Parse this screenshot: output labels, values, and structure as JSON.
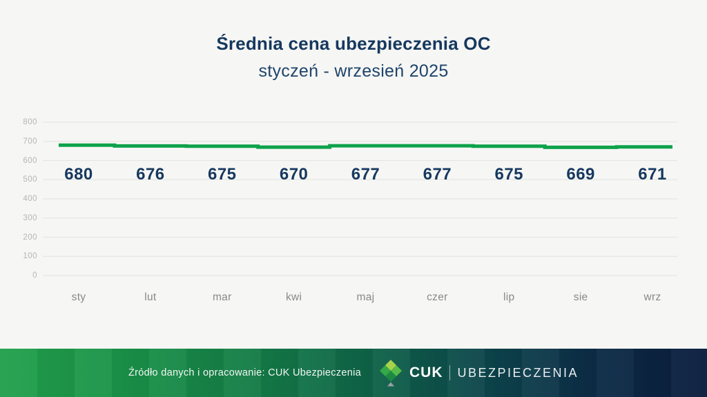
{
  "header": {
    "title": "Średnia cena ubezpieczenia OC",
    "subtitle": "styczeń - wrzesień 2025"
  },
  "chart_data": {
    "type": "line",
    "line_interpolation": "step-middle",
    "categories": [
      "sty",
      "lut",
      "mar",
      "kwi",
      "maj",
      "czer",
      "lip",
      "sie",
      "wrz"
    ],
    "values": [
      680,
      676,
      675,
      670,
      677,
      677,
      675,
      669,
      671
    ],
    "data_labels": [
      "680",
      "676",
      "675",
      "670",
      "677",
      "677",
      "675",
      "669",
      "671"
    ],
    "title": "Średnia cena ubezpieczenia OC",
    "subtitle": "styczeń - wrzesień 2025",
    "xlabel": "",
    "ylabel": "",
    "ylim": [
      0,
      800
    ],
    "y_ticks": [
      0,
      100,
      200,
      300,
      400,
      500,
      600,
      700,
      800
    ],
    "grid": true,
    "legend": false
  },
  "colors": {
    "line": "#0ea24b",
    "grid": "#e6e6e3",
    "y_tick_text": "#b5b5b2",
    "x_tick_text": "#87888a",
    "value_label_text": "#16385f",
    "title_text": "#16385f",
    "background": "#f6f6f4",
    "footer_gradient_start": "#22a14c",
    "footer_gradient_end": "#0a1c3d"
  },
  "footer": {
    "source_text": "Źródło danych i opracowanie: CUK Ubezpieczenia",
    "brand_name": "CUK",
    "brand_secondary": "UBEZPIECZENIA"
  },
  "logo": {
    "icon": "cuk-diamond-logo-icon",
    "facet_colors": [
      "#a8d24b",
      "#35a947",
      "#55bc47",
      "#1d8a44"
    ],
    "pointer_color": "#97a0a6"
  }
}
